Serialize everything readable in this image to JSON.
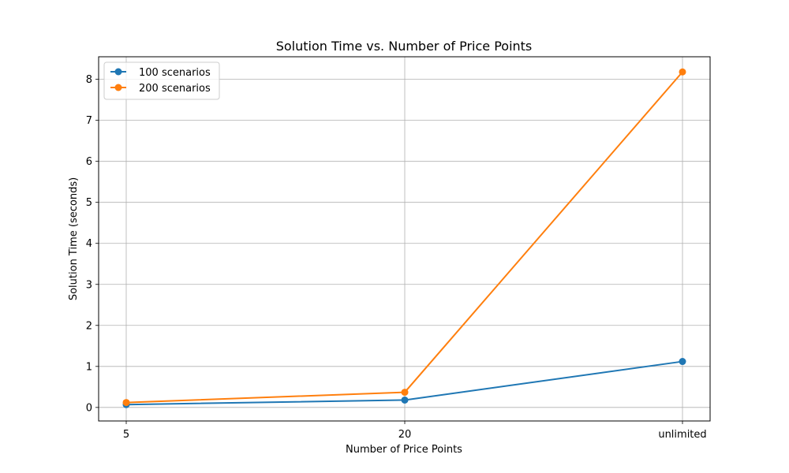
{
  "chart_data": {
    "type": "line",
    "title": "Solution Time vs. Number of Price Points",
    "xlabel": "Number of Price Points",
    "ylabel": "Solution Time (seconds)",
    "categories": [
      "5",
      "20",
      "unlimited"
    ],
    "ylim": [
      -0.33,
      8.55
    ],
    "yticks": [
      0,
      1,
      2,
      3,
      4,
      5,
      6,
      7,
      8
    ],
    "grid": true,
    "legend_position": "top-left",
    "series": [
      {
        "name": "100 scenarios",
        "color": "#1f77b4",
        "values": [
          0.07,
          0.18,
          1.12
        ]
      },
      {
        "name": "200 scenarios",
        "color": "#ff7f0e",
        "values": [
          0.12,
          0.37,
          8.18
        ]
      }
    ]
  }
}
